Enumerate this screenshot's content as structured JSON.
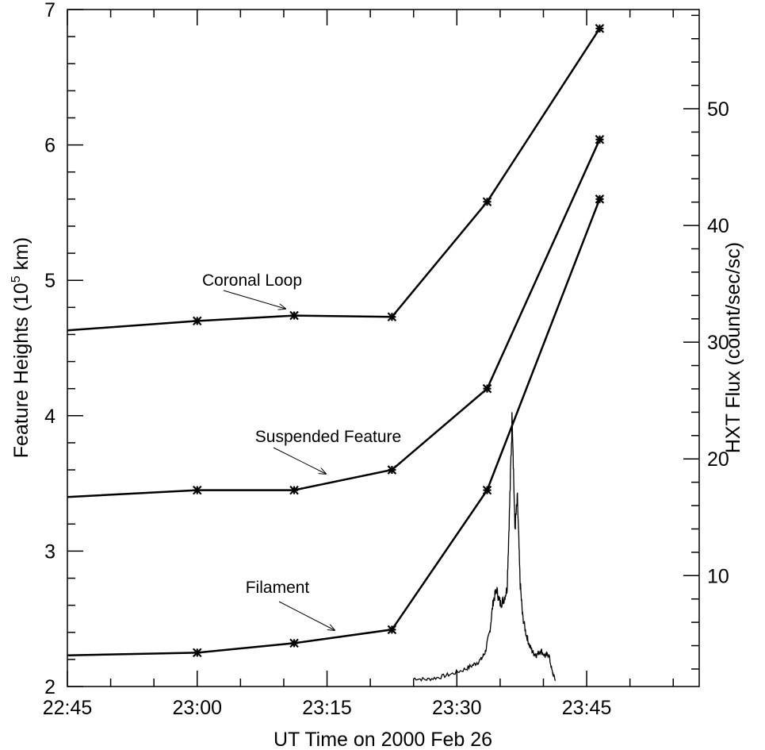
{
  "chart_data": {
    "type": "line",
    "xlabel": "UT Time on 2000 Feb 26",
    "ylabel_left": "Feature Heights (10",
    "ylabel_left_sup": "5",
    "ylabel_left_end": " km)",
    "ylabel_right": "HXT Flux (count/sec/sc)",
    "x_ticks": [
      "22:45",
      "23:00",
      "23:15",
      "23:30",
      "23:45"
    ],
    "x_tick_minutes": [
      0,
      15,
      30,
      45,
      60
    ],
    "xlim_minutes_from_22_45": [
      0,
      73
    ],
    "ylim_left": [
      2,
      7
    ],
    "yticks_left": [
      2,
      3,
      4,
      5,
      6,
      7
    ],
    "ylim_right": [
      0.5,
      58.5
    ],
    "yticks_right": [
      10,
      20,
      30,
      40,
      50
    ],
    "series": [
      {
        "name": "Coronal Loop",
        "x_minutes": [
          0,
          15,
          26.2,
          37.5,
          48.5,
          61.5
        ],
        "y": [
          4.63,
          4.7,
          4.74,
          4.73,
          5.58,
          6.86
        ]
      },
      {
        "name": "Suspended Feature",
        "x_minutes": [
          0,
          15,
          26.2,
          37.5,
          48.5,
          61.5
        ],
        "y": [
          3.4,
          3.45,
          3.45,
          3.6,
          4.2,
          6.04
        ]
      },
      {
        "name": "Filament",
        "x_minutes": [
          0,
          15,
          26.2,
          37.5,
          48.5,
          61.5
        ],
        "y": [
          2.23,
          2.25,
          2.32,
          2.42,
          3.45,
          5.6
        ]
      }
    ],
    "hxt_flux": {
      "x_minutes": [
        40.0,
        41.5,
        43.0,
        44.5,
        46.0,
        47.0,
        47.8,
        48.3,
        48.8,
        49.2,
        49.6,
        50.0,
        50.4,
        50.8,
        51.1,
        51.4,
        51.7,
        52.0,
        52.3,
        52.6,
        53.0,
        53.4,
        53.8,
        54.2,
        54.7,
        55.2,
        55.6,
        56.0,
        56.4
      ],
      "y": [
        1.2,
        1.1,
        1.3,
        1.6,
        2.0,
        2.4,
        2.8,
        3.5,
        5.2,
        7.8,
        8.8,
        7.6,
        7.9,
        8.9,
        16.0,
        24.0,
        14.0,
        16.5,
        9.5,
        6.5,
        5.0,
        4.0,
        3.4,
        3.2,
        3.6,
        3.1,
        3.3,
        1.8,
        1.0
      ]
    },
    "annotations": [
      {
        "text": "Coronal Loop",
        "points_to": "Coronal Loop"
      },
      {
        "text": "Suspended Feature",
        "points_to": "Suspended Feature"
      },
      {
        "text": "Filament",
        "points_to": "Filament"
      }
    ]
  }
}
